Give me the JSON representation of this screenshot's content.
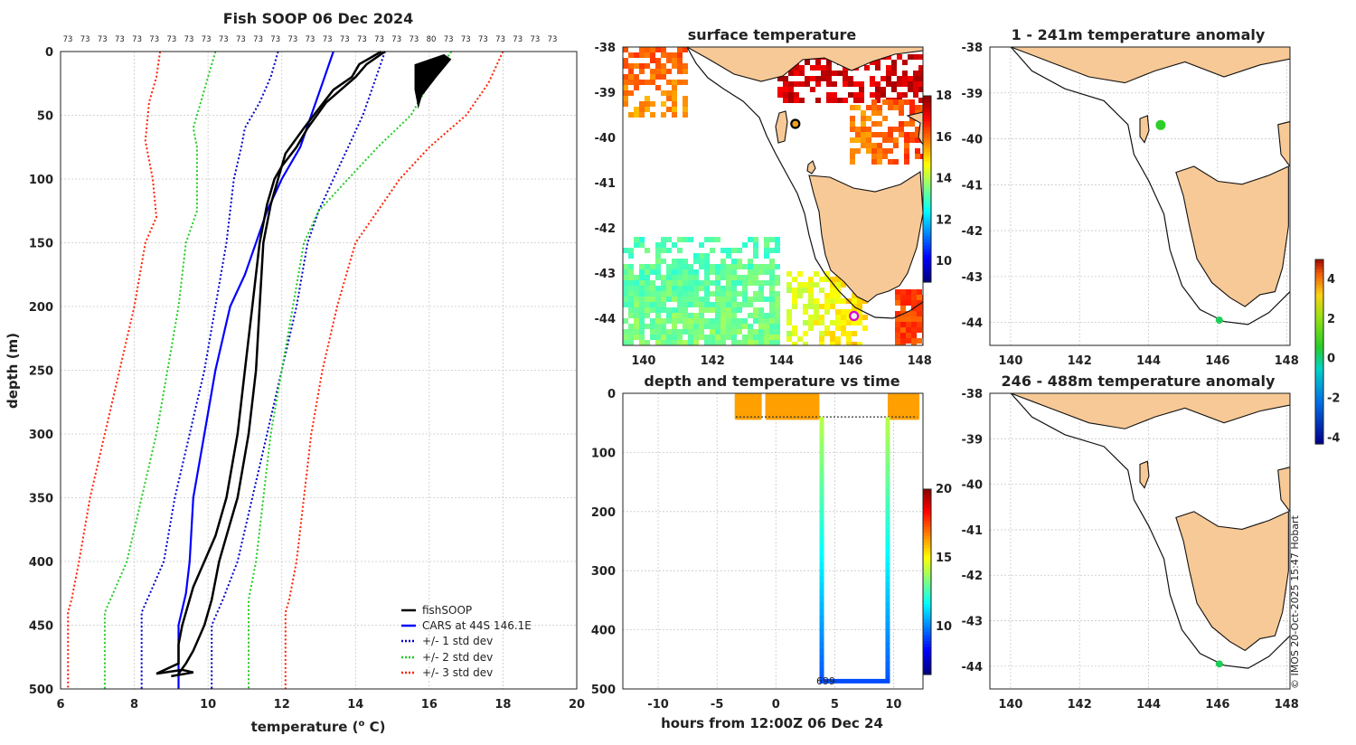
{
  "main": {
    "title": "Fish SOOP 06 Dec 2024",
    "xlabel": "temperature (",
    "xlabel_sup": "o",
    "xlabel_tail": " C)",
    "ylabel": "depth (m)",
    "xlim": [
      6,
      20
    ],
    "ylim": [
      0,
      500
    ],
    "xticks": [
      "6",
      "8",
      "10",
      "12",
      "14",
      "16",
      "18",
      "20"
    ],
    "yticks": [
      "0",
      "50",
      "100",
      "150",
      "200",
      "250",
      "300",
      "350",
      "400",
      "450",
      "500"
    ],
    "count_labels": [
      "73",
      "73",
      "73",
      "73",
      "73",
      "73",
      "73",
      "73",
      "73",
      "73",
      "73",
      "73",
      "73",
      "73",
      "73",
      "73",
      "73",
      "73",
      "73",
      "73",
      "73",
      "80",
      "73",
      "73",
      "73",
      "73",
      "73",
      "73",
      "73"
    ],
    "legend": [
      "fishSOOP",
      "CARS at 44S 146.1E",
      "+/- 1 std dev",
      "+/- 2 std dev",
      "+/- 3 std dev"
    ]
  },
  "colors": {
    "fishsoop": "#000000",
    "cars": "#0000ff",
    "std1": "#0000cc",
    "std2": "#1fcc1f",
    "std3": "#ff2200",
    "land": "#f7c996"
  },
  "chart_data": [
    {
      "type": "line",
      "title": "Fish SOOP 06 Dec 2024",
      "xlabel": "temperature (o C)",
      "ylabel": "depth (m)",
      "xlim": [
        6,
        20
      ],
      "ylim": [
        500,
        0
      ],
      "series": [
        {
          "name": "CARS at 44S 146.1E",
          "temp": [
            13.4,
            13.1,
            12.8,
            12.5,
            12.0,
            11.6,
            11.3,
            11.0,
            10.6,
            10.2,
            9.9,
            9.6,
            9.5,
            9.4,
            9.2,
            9.2,
            9.2
          ],
          "depth": [
            0,
            25,
            50,
            75,
            100,
            125,
            150,
            175,
            200,
            250,
            300,
            350,
            400,
            425,
            450,
            475,
            500
          ]
        },
        {
          "name": "+/- 1 std dev (lower)",
          "temp": [
            11.9,
            11.7,
            11.4,
            11.0,
            10.9,
            10.7,
            10.5,
            10.2,
            9.9,
            9.5,
            9.1,
            8.8,
            8.5,
            8.2,
            8.2
          ],
          "depth": [
            0,
            20,
            40,
            60,
            75,
            100,
            150,
            200,
            250,
            300,
            350,
            400,
            420,
            440,
            500
          ]
        },
        {
          "name": "+/- 1 std dev (upper)",
          "temp": [
            14.8,
            14.5,
            14.2,
            13.8,
            13.4,
            13.0,
            12.7,
            12.4,
            12.0,
            11.6,
            11.2,
            10.8,
            10.4,
            10.1,
            10.1
          ],
          "depth": [
            0,
            25,
            50,
            75,
            100,
            125,
            150,
            200,
            250,
            300,
            350,
            400,
            430,
            450,
            500
          ]
        },
        {
          "name": "+/- 2 std dev (lower)",
          "temp": [
            10.2,
            10.0,
            9.8,
            9.6,
            9.7,
            9.7,
            9.4,
            9.2,
            8.9,
            8.6,
            8.2,
            7.8,
            7.5,
            7.2,
            7.2
          ],
          "depth": [
            0,
            20,
            40,
            60,
            75,
            125,
            150,
            200,
            250,
            300,
            350,
            400,
            420,
            440,
            500
          ]
        },
        {
          "name": "+/- 2 std dev (upper)",
          "temp": [
            16.6,
            16.0,
            15.5,
            14.6,
            13.8,
            13.0,
            12.6,
            12.3,
            12.0,
            11.7,
            11.5,
            11.3,
            11.1,
            11.1
          ],
          "depth": [
            0,
            25,
            50,
            75,
            100,
            125,
            150,
            200,
            250,
            300,
            350,
            400,
            430,
            500
          ]
        },
        {
          "name": "+/- 3 std dev (lower)",
          "temp": [
            8.7,
            8.6,
            8.4,
            8.3,
            8.5,
            8.6,
            8.3,
            8.0,
            7.6,
            7.2,
            6.8,
            6.5,
            6.3,
            6.2,
            6.2
          ],
          "depth": [
            0,
            20,
            40,
            70,
            100,
            130,
            150,
            200,
            250,
            300,
            350,
            400,
            430,
            440,
            500
          ]
        },
        {
          "name": "+/- 3 std dev (upper)",
          "temp": [
            18.0,
            17.6,
            17.0,
            16.0,
            15.2,
            14.6,
            14.0,
            13.5,
            13.1,
            12.8,
            12.6,
            12.4,
            12.2,
            12.1,
            12.1
          ],
          "depth": [
            0,
            25,
            50,
            75,
            100,
            125,
            150,
            200,
            250,
            300,
            350,
            400,
            430,
            440,
            500
          ]
        },
        {
          "name": "fishSOOP cast 1",
          "temp": [
            14.8,
            14.3,
            14.0,
            13.6,
            13.2,
            12.7,
            12.4,
            12.0,
            11.8,
            11.6,
            11.4,
            11.2,
            11.0,
            10.8,
            10.5,
            10.2,
            9.9,
            9.6,
            9.3,
            9.2,
            9.2,
            8.6
          ],
          "depth": [
            0,
            10,
            20,
            30,
            40,
            60,
            75,
            90,
            100,
            120,
            150,
            200,
            250,
            300,
            350,
            380,
            400,
            420,
            450,
            465,
            480,
            488
          ]
        },
        {
          "name": "fishSOOP cast 2",
          "temp": [
            14.7,
            14.1,
            13.9,
            13.4,
            13.0,
            12.6,
            12.1,
            11.9,
            11.7,
            11.5,
            11.4,
            11.3,
            11.1,
            10.8,
            10.5,
            10.3,
            10.1,
            9.9,
            9.6,
            9.4,
            9.2
          ],
          "depth": [
            0,
            10,
            20,
            30,
            45,
            60,
            80,
            100,
            120,
            150,
            200,
            250,
            300,
            350,
            380,
            400,
            430,
            450,
            470,
            480,
            488
          ]
        }
      ]
    },
    {
      "type": "heatmap",
      "title": "surface temperature",
      "xlim": [
        139.4,
        148.1
      ],
      "ylim": [
        -44.6,
        -38
      ],
      "xticks": [
        "140",
        "142",
        "144",
        "146",
        "148"
      ],
      "yticks": [
        "-38",
        "-39",
        "-40",
        "-41",
        "-42",
        "-43",
        "-44"
      ],
      "colorbar": {
        "ticks": [
          "18",
          "16",
          "14",
          "12",
          "10"
        ],
        "range": [
          9,
          18
        ]
      },
      "markers": [
        {
          "lon": 144.4,
          "lat": -39.7,
          "color": "#000000"
        },
        {
          "lon": 146.1,
          "lat": -43.95,
          "color": "#dd00dd"
        }
      ]
    },
    {
      "type": "scatter",
      "title": "depth and temperature vs time",
      "xlabel": "hours from 12:00Z 06 Dec 24",
      "xlim": [
        -13,
        12.5
      ],
      "ylim": [
        500,
        0
      ],
      "xticks": [
        "-10",
        "-5",
        "0",
        "5",
        "10"
      ],
      "yticks": [
        "0",
        "100",
        "200",
        "300",
        "400",
        "500"
      ],
      "annotation": "699",
      "colorbar": {
        "ticks": [
          "20",
          "15",
          "10"
        ],
        "range": [
          6.5,
          20
        ]
      }
    },
    {
      "type": "scatter",
      "title": "1 - 241m temperature anomaly",
      "xlim": [
        139.4,
        148.1
      ],
      "ylim": [
        -44.5,
        -38
      ],
      "xticks": [
        "140",
        "142",
        "144",
        "146",
        "148"
      ],
      "yticks": [
        "-38",
        "-39",
        "-40",
        "-41",
        "-42",
        "-43",
        "-44"
      ],
      "points": [
        {
          "lon": 144.35,
          "lat": -39.7,
          "anomaly": 0.6
        },
        {
          "lon": 146.05,
          "lat": -43.95,
          "anomaly": 0.2
        }
      ],
      "colorbar": {
        "ticks": [
          "4",
          "2",
          "0",
          "-2",
          "-4"
        ],
        "range": [
          -4.3,
          5
        ]
      }
    },
    {
      "type": "scatter",
      "title": "246 - 488m temperature anomaly",
      "xlim": [
        139.4,
        148.1
      ],
      "ylim": [
        -44.5,
        -38
      ],
      "xticks": [
        "140",
        "142",
        "144",
        "146",
        "148"
      ],
      "yticks": [
        "-38",
        "-39",
        "-40",
        "-41",
        "-42",
        "-43",
        "-44"
      ],
      "points": [
        {
          "lon": 146.05,
          "lat": -43.95,
          "anomaly": 0.2
        }
      ]
    }
  ],
  "credit": "© IMOS 20-Oct-2025 15:47 Hobart"
}
